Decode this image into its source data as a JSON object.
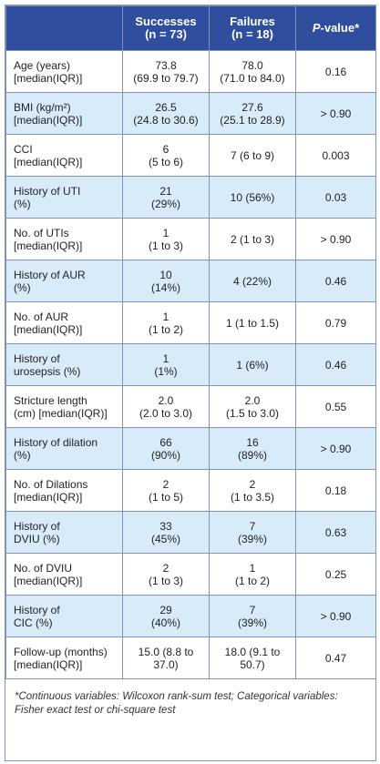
{
  "header": {
    "col1": "",
    "col2_line1": "Successes",
    "col2_line2": "(n = 73)",
    "col3_line1": "Failures",
    "col3_line2": "(n = 18)",
    "col4_p": "P",
    "col4_rest": "-value*"
  },
  "rows": [
    {
      "l1": "Age (years)",
      "l2": "[median(IQR)]",
      "s1": "73.8",
      "s2": "(69.9 to 79.7)",
      "f1": "78.0",
      "f2": "(71.0 to 84.0)",
      "p": "0.16"
    },
    {
      "l1": "BMI (kg/m²)",
      "l2": "[median(IQR)]",
      "s1": "26.5",
      "s2": "(24.8 to 30.6)",
      "f1": "27.6",
      "f2": "(25.1 to 28.9)",
      "p": "> 0.90"
    },
    {
      "l1": "CCI",
      "l2": "[median(IQR)]",
      "s1": "6",
      "s2": "(5 to 6)",
      "f1": "7 (6 to 9)",
      "f2": "",
      "p": "0.003"
    },
    {
      "l1": "History of UTI",
      "l2": "(%)",
      "s1": "21",
      "s2": "(29%)",
      "f1": "10 (56%)",
      "f2": "",
      "p": "0.03"
    },
    {
      "l1": "No. of UTIs",
      "l2": "[median(IQR)]",
      "s1": "1",
      "s2": "(1 to 3)",
      "f1": "2 (1 to 3)",
      "f2": "",
      "p": "> 0.90"
    },
    {
      "l1": "History of AUR",
      "l2": "(%)",
      "s1": "10",
      "s2": "(14%)",
      "f1": "4 (22%)",
      "f2": "",
      "p": "0.46"
    },
    {
      "l1": "No. of AUR",
      "l2": "[median(IQR)]",
      "s1": "1",
      "s2": "(1 to 2)",
      "f1": "1 (1 to 1.5)",
      "f2": "",
      "p": "0.79"
    },
    {
      "l1": "History of",
      "l2": "urosepsis (%)",
      "s1": "1",
      "s2": "(1%)",
      "f1": "1 (6%)",
      "f2": "",
      "p": "0.46"
    },
    {
      "l1": "Stricture length",
      "l2": "(cm) [median(IQR)]",
      "s1": "2.0",
      "s2": "(2.0 to 3.0)",
      "f1": "2.0",
      "f2": "(1.5 to 3.0)",
      "p": "0.55"
    },
    {
      "l1": "History of dilation",
      "l2": "(%)",
      "s1": "66",
      "s2": "(90%)",
      "f1": "16",
      "f2": "(89%)",
      "p": "> 0.90"
    },
    {
      "l1": "No. of Dilations",
      "l2": "[median(IQR)]",
      "s1": "2",
      "s2": "(1 to 5)",
      "f1": "2",
      "f2": "(1 to 3.5)",
      "p": "0.18"
    },
    {
      "l1": "History of",
      "l2": "DVIU (%)",
      "s1": "33",
      "s2": "(45%)",
      "f1": "7",
      "f2": "(39%)",
      "p": "0.63"
    },
    {
      "l1": "No. of DVIU",
      "l2": "[median(IQR)]",
      "s1": "2",
      "s2": "(1 to 3)",
      "f1": "1",
      "f2": "(1 to 2)",
      "p": "0.25"
    },
    {
      "l1": "History of",
      "l2": "CIC (%)",
      "s1": "29",
      "s2": "(40%)",
      "f1": "7",
      "f2": "(39%)",
      "p": "> 0.90"
    },
    {
      "l1": "Follow-up (months)",
      "l2": "[median(IQR)]",
      "s1": "15.0 (8.8 to",
      "s2": "37.0)",
      "f1": "18.0 (9.1 to",
      "f2": "50.7)",
      "p": "0.47"
    }
  ],
  "footnote": {
    "line1": "*Continuous variables: Wilcoxon rank-sum test; Categorical variables:",
    "line2": "Fisher exact test or chi-square test"
  },
  "colors": {
    "header_bg": "#2f4f9e",
    "stripe_bg": "#d7ebf8",
    "border": "#7f93b5"
  }
}
